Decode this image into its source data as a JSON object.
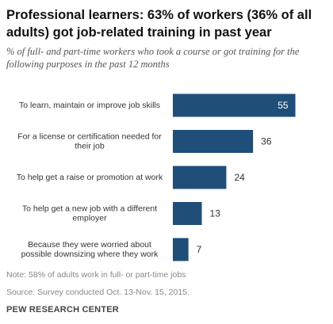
{
  "header": {
    "title": "Professional learners: 63% of workers (36% of all adults) got job-related training in past year",
    "subtitle": "% of full- and part-time workers who took a course or got training for the following purposes in the past 12 months"
  },
  "chart_data": {
    "type": "bar",
    "orientation": "horizontal",
    "categories": [
      [
        "To learn, maintain or improve job skills"
      ],
      [
        "For a license or certification needed for",
        "their job"
      ],
      [
        "To help get a raise or promotion at work"
      ],
      [
        "To help get a new job with a different",
        "employer"
      ],
      [
        "Because they were worried about",
        "possible downsizing where they work"
      ]
    ],
    "values": [
      55,
      36,
      24,
      13,
      7
    ],
    "data_labels": [
      "55",
      "36",
      "24",
      "13",
      "7"
    ],
    "bar_color": "#1f4e79",
    "xlim": [
      0,
      60
    ],
    "grid": false
  },
  "footer": {
    "note": "Note: 58% of adults work in full- or part-time jobs",
    "source": "Source: Survey conducted Oct. 13-Nov. 15, 2015.",
    "org": "PEW RESEARCH CENTER"
  }
}
